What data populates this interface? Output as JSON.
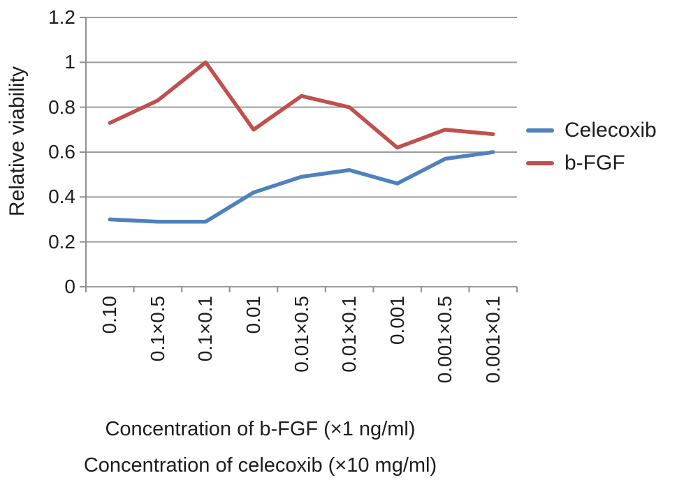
{
  "figure": {
    "background": "#ffffff",
    "text_color": "#1d1d1d"
  },
  "chart_data": {
    "type": "line",
    "title": "",
    "ylabel": "Relative viability",
    "xlabel_lines": [
      "Concentration of b-FGF (×1 ng/ml)",
      "Concentration of celecoxib (×10 mg/ml)"
    ],
    "categories": [
      "0.10",
      "0.1×0.5",
      "0.1×0.1",
      "0.01",
      "0.01×0.5",
      "0.01×0.1",
      "0.001",
      "0.001×0.5",
      "0.001×0.1"
    ],
    "series": [
      {
        "name": "Celecoxib",
        "color": "#4F81BD",
        "values": [
          0.3,
          0.29,
          0.29,
          0.42,
          0.49,
          0.52,
          0.46,
          0.57,
          0.6
        ]
      },
      {
        "name": "b-FGF",
        "color": "#C0504D",
        "values": [
          0.73,
          0.83,
          1.0,
          0.7,
          0.85,
          0.8,
          0.62,
          0.7,
          0.68
        ]
      }
    ],
    "ylim": [
      0,
      1.2
    ],
    "ytick_step": 0.2,
    "ytick_labels": [
      "0",
      "0.2",
      "0.4",
      "0.6",
      "0.8",
      "1",
      "1.2"
    ],
    "grid": "horizontal",
    "gridline_color": "#9c9c9c",
    "axis_color": "#8f8f8f",
    "legend_position": "right"
  }
}
